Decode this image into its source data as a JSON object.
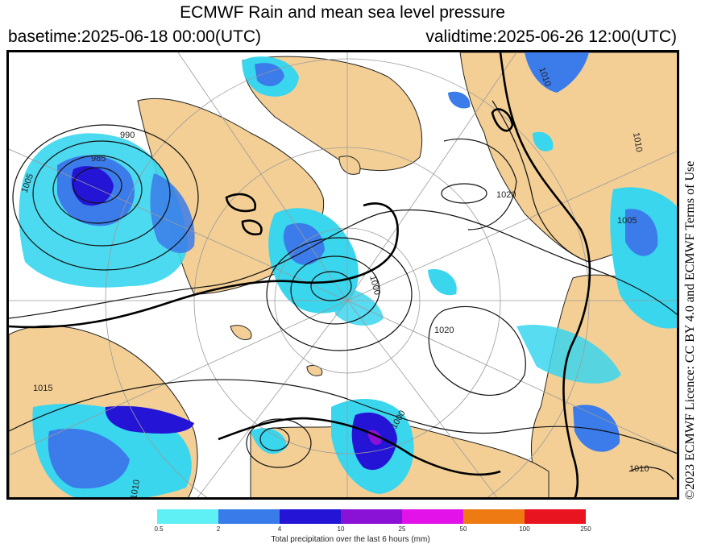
{
  "title": "ECMWF Rain and mean sea level pressure",
  "basetime": "basetime:2025-06-18 00:00(UTC)",
  "validtime": "validtime:2025-06-26 12:00(UTC)",
  "licence": "©2023 ECMWF Licence: CC BY 4.0 and ECMWF Terms of Use",
  "isobar_labels": [
    "990",
    "985",
    "1005",
    "1005",
    "1000",
    "1020",
    "1000",
    "1010",
    "1015",
    "1010",
    "1010",
    "1020",
    "1010"
  ],
  "legend": {
    "caption": "Total precipitation over the last 6 hours (mm)",
    "ticks": [
      "0.5",
      "2",
      "4",
      "10",
      "25",
      "50",
      "100",
      "250"
    ],
    "colors": [
      "#5ef0f5",
      "#3a7bea",
      "#2415d6",
      "#8a12d6",
      "#e312e8",
      "#ee7a14",
      "#e8141f"
    ]
  },
  "colors": {
    "land": "#f3cf95",
    "ocean": "#ffffff",
    "rain_light": "#39d6ee",
    "rain_medium": "#3b7bea",
    "rain_heavy": "#2415d6"
  }
}
